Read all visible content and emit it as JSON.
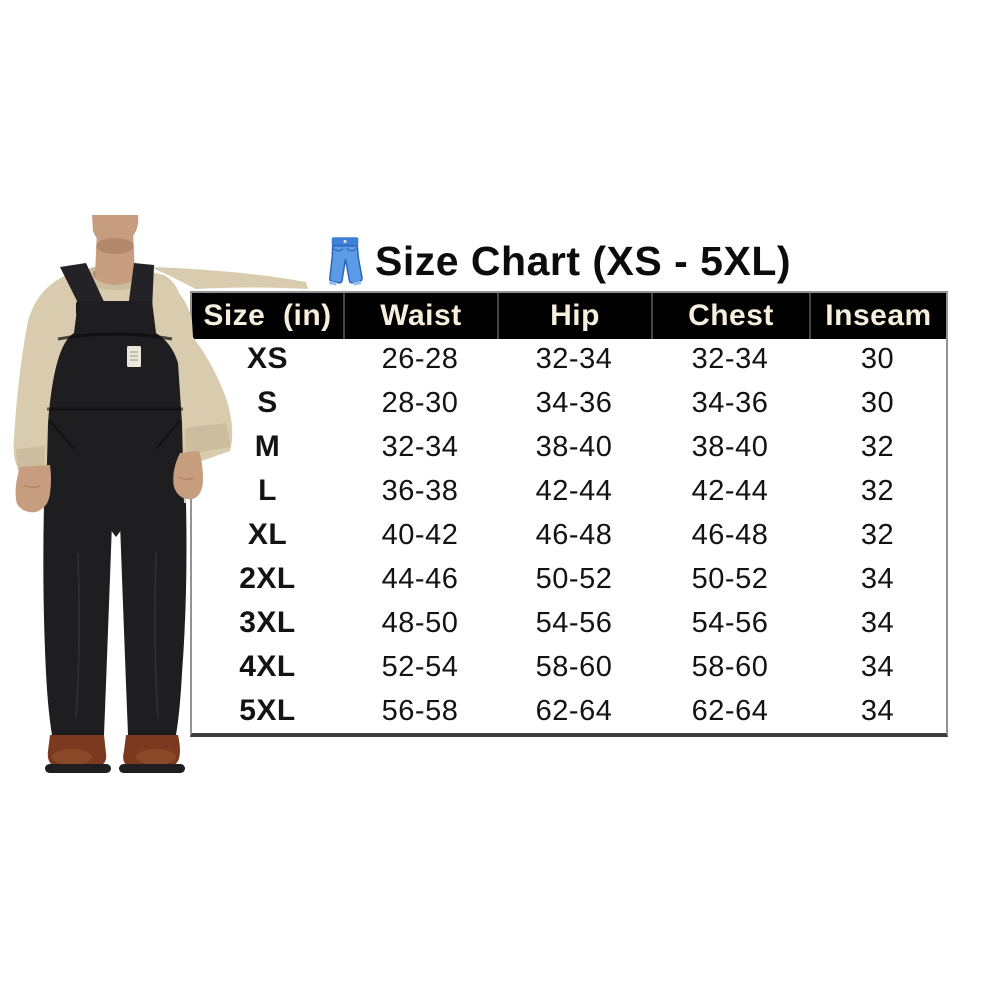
{
  "title": {
    "icon": "jeans-icon",
    "text": "Size Chart (XS - 5XL)"
  },
  "size_chart": {
    "columns": [
      "Size  (in)",
      "Waist",
      "Hip",
      "Chest",
      "Inseam"
    ],
    "rows": [
      [
        "XS",
        "26-28",
        "32-34",
        "32-34",
        "30"
      ],
      [
        "S",
        "28-30",
        "34-36",
        "34-36",
        "30"
      ],
      [
        "M",
        "32-34",
        "38-40",
        "38-40",
        "32"
      ],
      [
        "L",
        "36-38",
        "42-44",
        "42-44",
        "32"
      ],
      [
        "XL",
        "40-42",
        "46-48",
        "46-48",
        "32"
      ],
      [
        "2XL",
        "44-46",
        "50-52",
        "50-52",
        "34"
      ],
      [
        "3XL",
        "48-50",
        "54-56",
        "54-56",
        "34"
      ],
      [
        "4XL",
        "52-54",
        "58-60",
        "58-60",
        "34"
      ],
      [
        "5XL",
        "56-58",
        "62-64",
        "62-64",
        "34"
      ]
    ],
    "unit": "in"
  },
  "photo": {
    "description": "Model wearing black bib overalls over a tan long-sleeve shirt with brown boots"
  },
  "colors": {
    "header_bg": "#000000",
    "header_text": "#f7efdd",
    "body_text": "#131313",
    "table_side_border": "#939393",
    "table_bottom_border": "#3c3c3c",
    "title_text": "#0c0c0c",
    "jeans_icon_blue": "#5a9ae6",
    "shirt_tan": "#d9ccae",
    "overalls_black": "#1e1e21",
    "boot_brown": "#7b3a20",
    "skin": "#c79d80"
  }
}
